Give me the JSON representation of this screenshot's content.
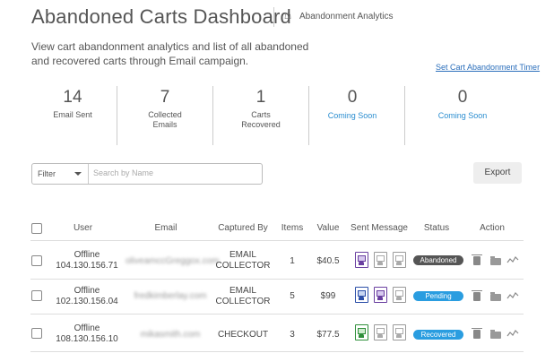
{
  "header": {
    "title": "Abandoned Carts Dashboard",
    "breadcrumb": "Abandonment Analytics"
  },
  "description": "View cart abandonment analytics and list of all abandoned and recovered carts through Email campaign.",
  "timer_link": "Set Cart Abandonment Timer",
  "stats": [
    {
      "value": "14",
      "label": "Email Sent"
    },
    {
      "value": "7",
      "label": "Collected\nEmails"
    },
    {
      "value": "1",
      "label": "Carts\nRecovered"
    },
    {
      "value": "0",
      "label": "Coming Soon"
    },
    {
      "value": "0",
      "label": "Coming Soon"
    }
  ],
  "filter": {
    "label": "Filter",
    "search_placeholder": "Search by Name"
  },
  "export_label": "Export",
  "table": {
    "headers": [
      "User",
      "Email",
      "Captured By",
      "Items",
      "Value",
      "Sent Message",
      "Status",
      "Action"
    ],
    "rows": [
      {
        "user_status": "Offline",
        "ip": "104.130.156.71",
        "email": "oliveamccGreggox.com",
        "captured_by": "EMAIL\nCOLLECTOR",
        "items": "1",
        "value": "$40.5",
        "status": "Abandoned",
        "status_color": "#555555",
        "messages": [
          "sent-purple",
          "pending",
          "pending"
        ]
      },
      {
        "user_status": "Offline",
        "ip": "102.130.156.04",
        "email": "fredkimberlay.com",
        "captured_by": "EMAIL\nCOLLECTOR",
        "items": "5",
        "value": "$99",
        "status": "Pending",
        "status_color": "#2a9de0",
        "messages": [
          "sent-blue",
          "sent-purple",
          "pending"
        ]
      },
      {
        "user_status": "Offline",
        "ip": "108.130.156.10",
        "email": "mikasmith.com",
        "captured_by": "CHECKOUT",
        "items": "3",
        "value": "$77.5",
        "status": "Recovered",
        "status_color": "#2a9de0",
        "messages": [
          "sent-green",
          "pending",
          "pending"
        ]
      }
    ]
  }
}
